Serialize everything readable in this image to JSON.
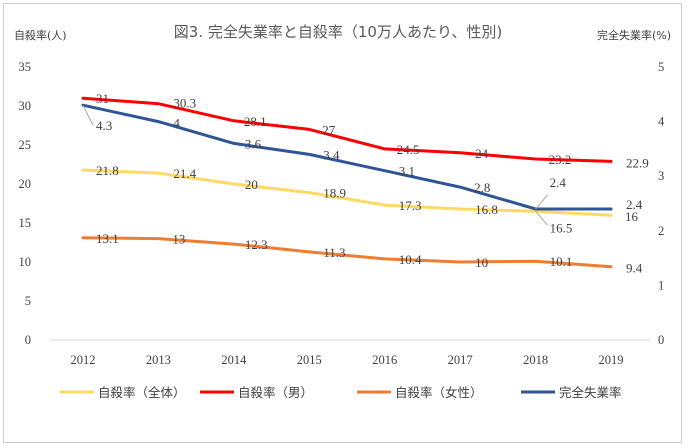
{
  "chart_data": {
    "type": "line",
    "title": "図3. 完全失業率と自殺率（10万人あたり、性別)",
    "y_left_label": "自殺率(人)",
    "y_right_label": "完全失業率(%)",
    "categories": [
      "2012",
      "2013",
      "2014",
      "2015",
      "2016",
      "2017",
      "2018",
      "2019"
    ],
    "ylim_left": [
      0,
      35
    ],
    "yticks_left": [
      0,
      5,
      10,
      15,
      20,
      25,
      30,
      35
    ],
    "ylim_right": [
      0,
      5
    ],
    "yticks_right": [
      0,
      1,
      2,
      3,
      4,
      5
    ],
    "grid": false,
    "legend_position": "bottom",
    "series": [
      {
        "name": "自殺率（全体）",
        "axis": "left",
        "color": "#FFD966",
        "values": [
          21.8,
          21.4,
          20,
          18.9,
          17.3,
          16.8,
          16.5,
          16
        ],
        "labels": [
          "21.8",
          "21.4",
          "20",
          "18.9",
          "17.3",
          "16.8",
          "16.5",
          "16"
        ]
      },
      {
        "name": "自殺率（男）",
        "axis": "left",
        "color": "#FF0000",
        "values": [
          31,
          30.3,
          28.1,
          27,
          24.5,
          24,
          23.2,
          22.9
        ],
        "labels": [
          "31",
          "30.3",
          "28.1",
          "27",
          "24.5",
          "24",
          "23.2",
          "22.9"
        ]
      },
      {
        "name": "自殺率（女性）",
        "axis": "left",
        "color": "#ED7D31",
        "values": [
          13.1,
          13,
          12.3,
          11.3,
          10.4,
          10,
          10.1,
          9.4
        ],
        "labels": [
          "13.1",
          "13",
          "12.3",
          "11.3",
          "10.4",
          "10",
          "10.1",
          "9.4"
        ]
      },
      {
        "name": "完全失業率",
        "axis": "right",
        "color": "#2F5597",
        "values": [
          4.3,
          4.0,
          3.6,
          3.4,
          3.1,
          2.8,
          2.4,
          2.4
        ],
        "labels": [
          "4.3",
          "4",
          "3.6",
          "3.4",
          "3.1",
          "2.8",
          "2.4",
          "2.4"
        ]
      }
    ]
  }
}
